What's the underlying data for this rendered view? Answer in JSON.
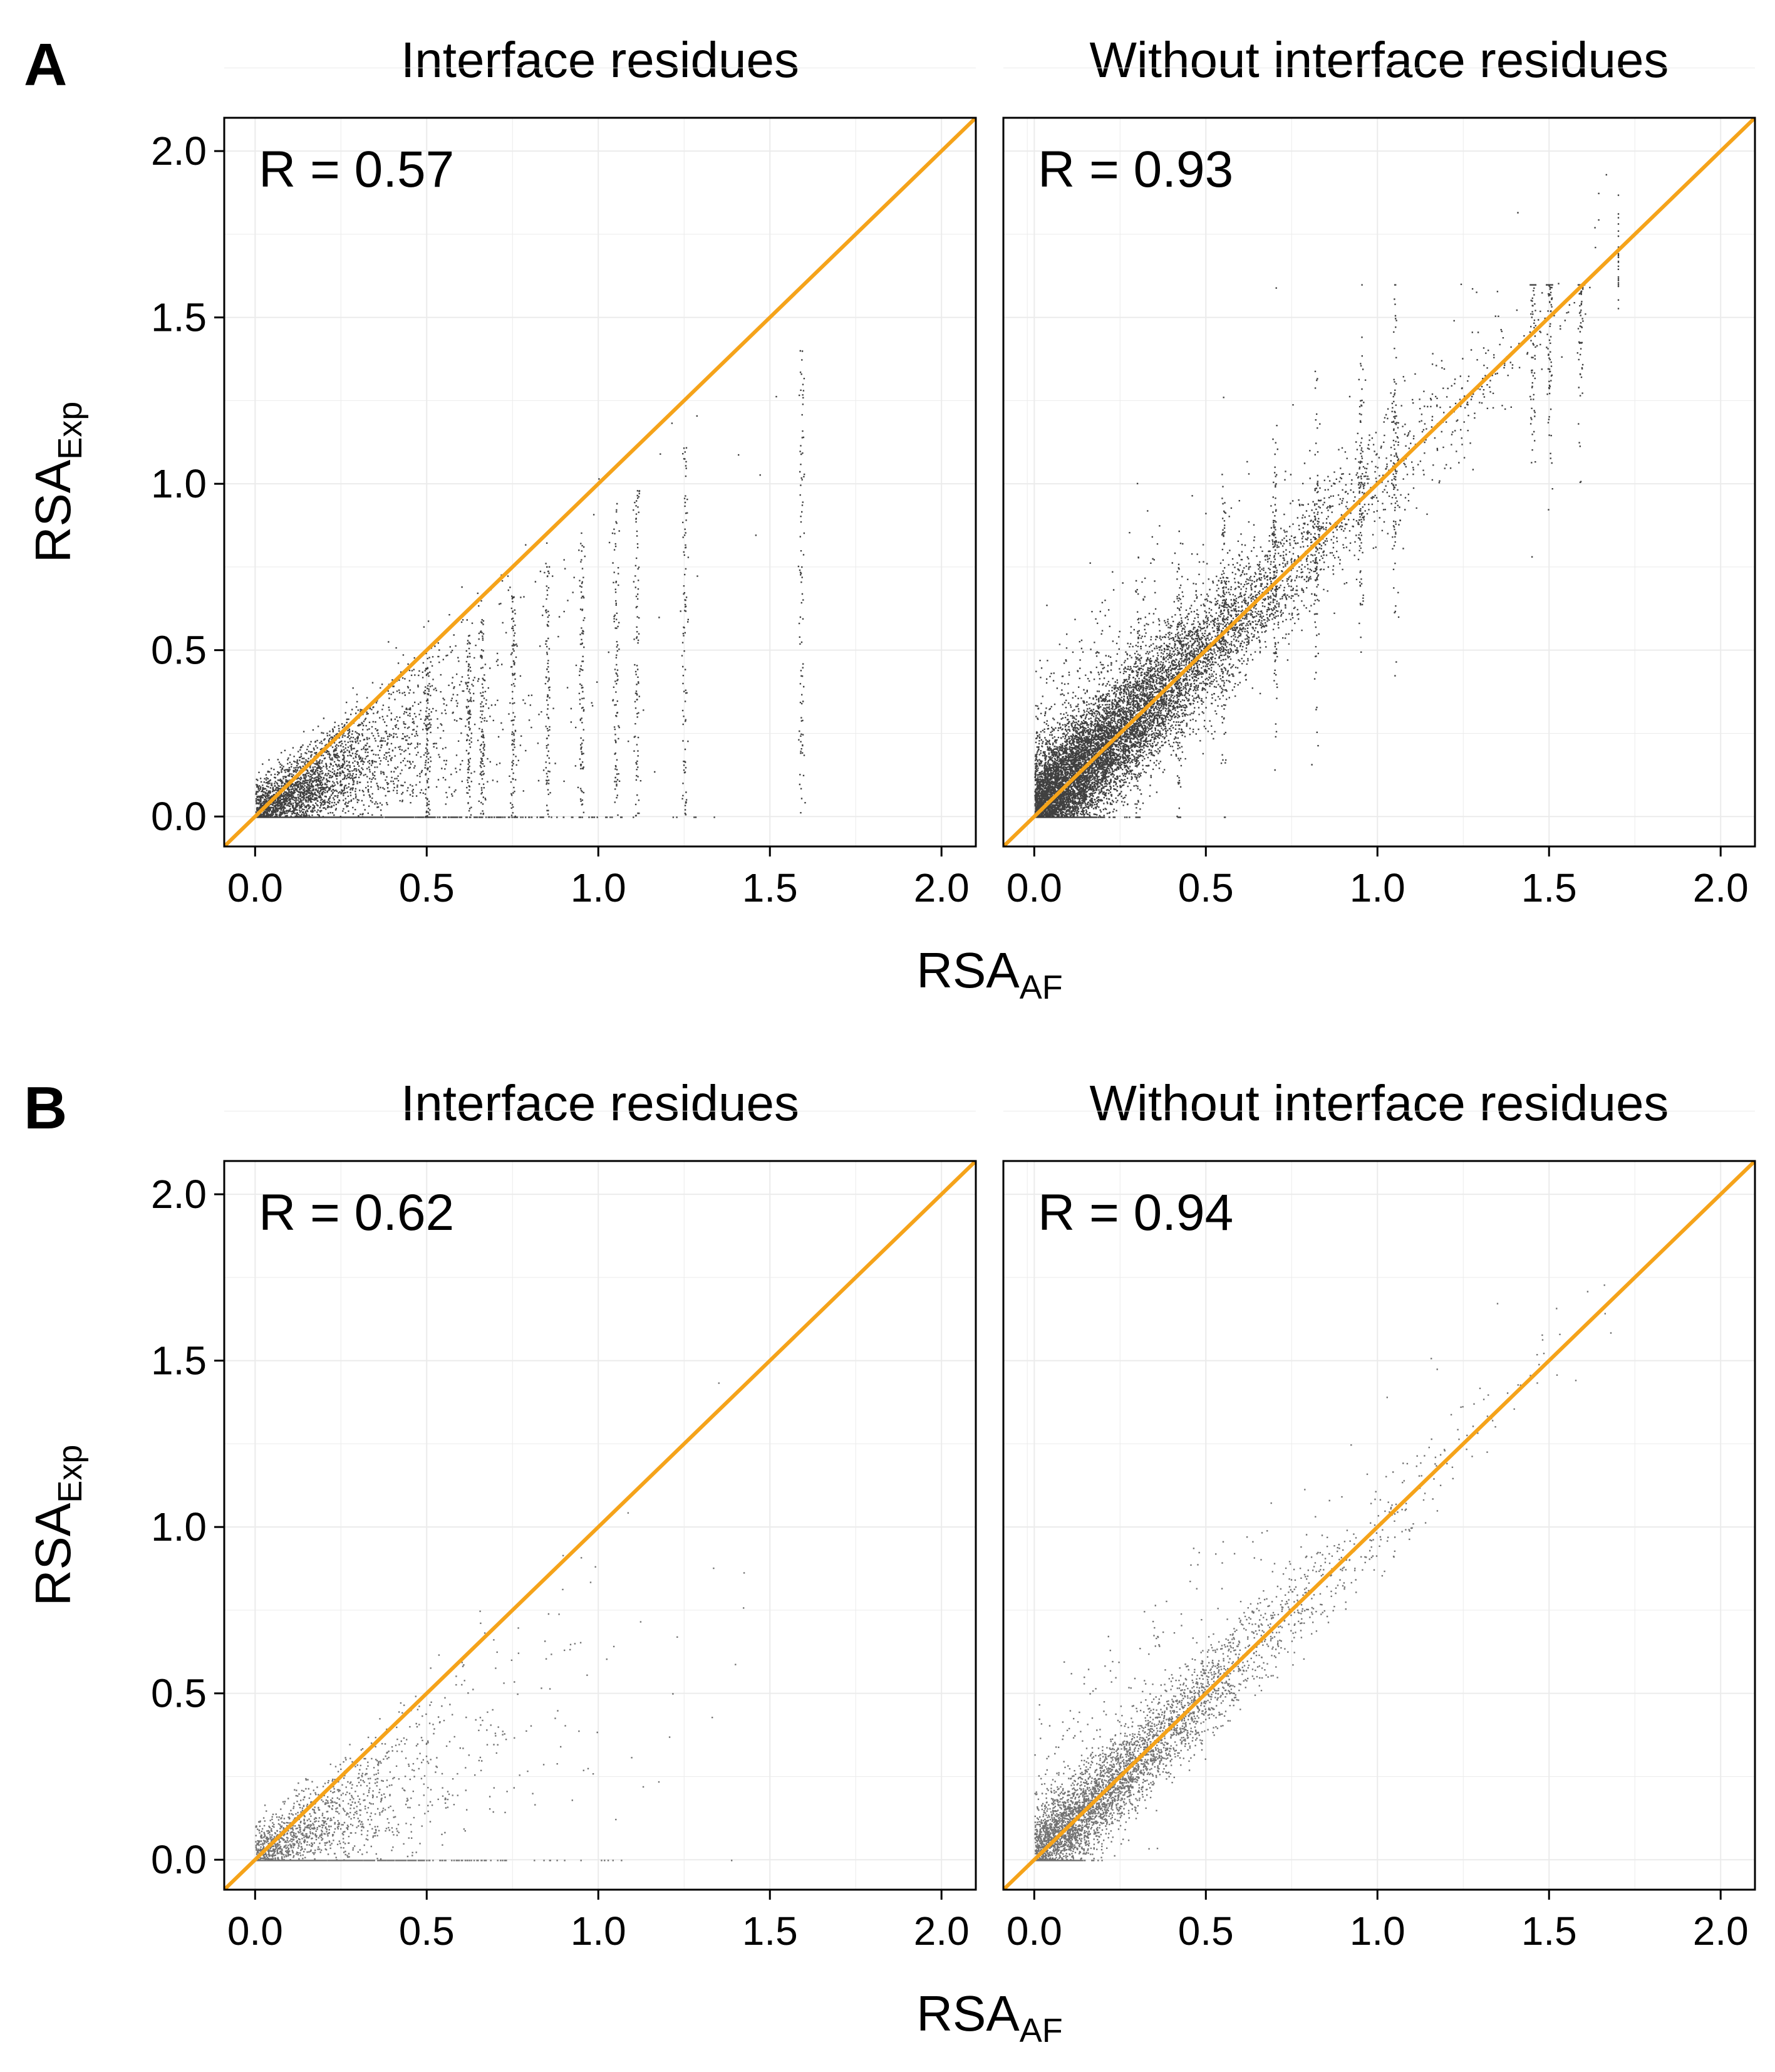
{
  "colors": {
    "identity_line": "#F5A31A",
    "points": "#000000",
    "grid": "#EBEBEB",
    "frame": "#000000"
  },
  "rows": [
    {
      "letter": "A",
      "xlabel": {
        "main": "RSA",
        "sub": "AF"
      },
      "ylabel": {
        "main": "RSA",
        "sub": "Exp"
      },
      "panels": [
        {
          "title": "Interface residues",
          "r_label": "R = 0.57",
          "r": 0.57,
          "density": "dense"
        },
        {
          "title": "Without interface residues",
          "r_label": "R = 0.93",
          "r": 0.93,
          "density": "dense"
        }
      ]
    },
    {
      "letter": "B",
      "xlabel": {
        "main": "RSA",
        "sub": "AF"
      },
      "ylabel": {
        "main": "RSA",
        "sub": "Exp"
      },
      "panels": [
        {
          "title": "Interface residues",
          "r_label": "R = 0.62",
          "r": 0.62,
          "density": "sparse"
        },
        {
          "title": "Without interface residues",
          "r_label": "R = 0.94",
          "r": 0.94,
          "density": "sparse"
        }
      ]
    }
  ],
  "chart_data": {
    "type": "scatter",
    "xlim": [
      -0.09,
      2.1
    ],
    "ylim": [
      -0.09,
      2.1
    ],
    "x_ticks": [
      "0.0",
      "0.5",
      "1.0",
      "1.5",
      "2.0"
    ],
    "y_ticks": [
      "0.0",
      "0.5",
      "1.0",
      "1.5",
      "2.0"
    ],
    "tick_values": [
      0,
      0.5,
      1.0,
      1.5,
      2.0
    ],
    "reference_line": "y = x",
    "grid": true,
    "legend": "none"
  }
}
